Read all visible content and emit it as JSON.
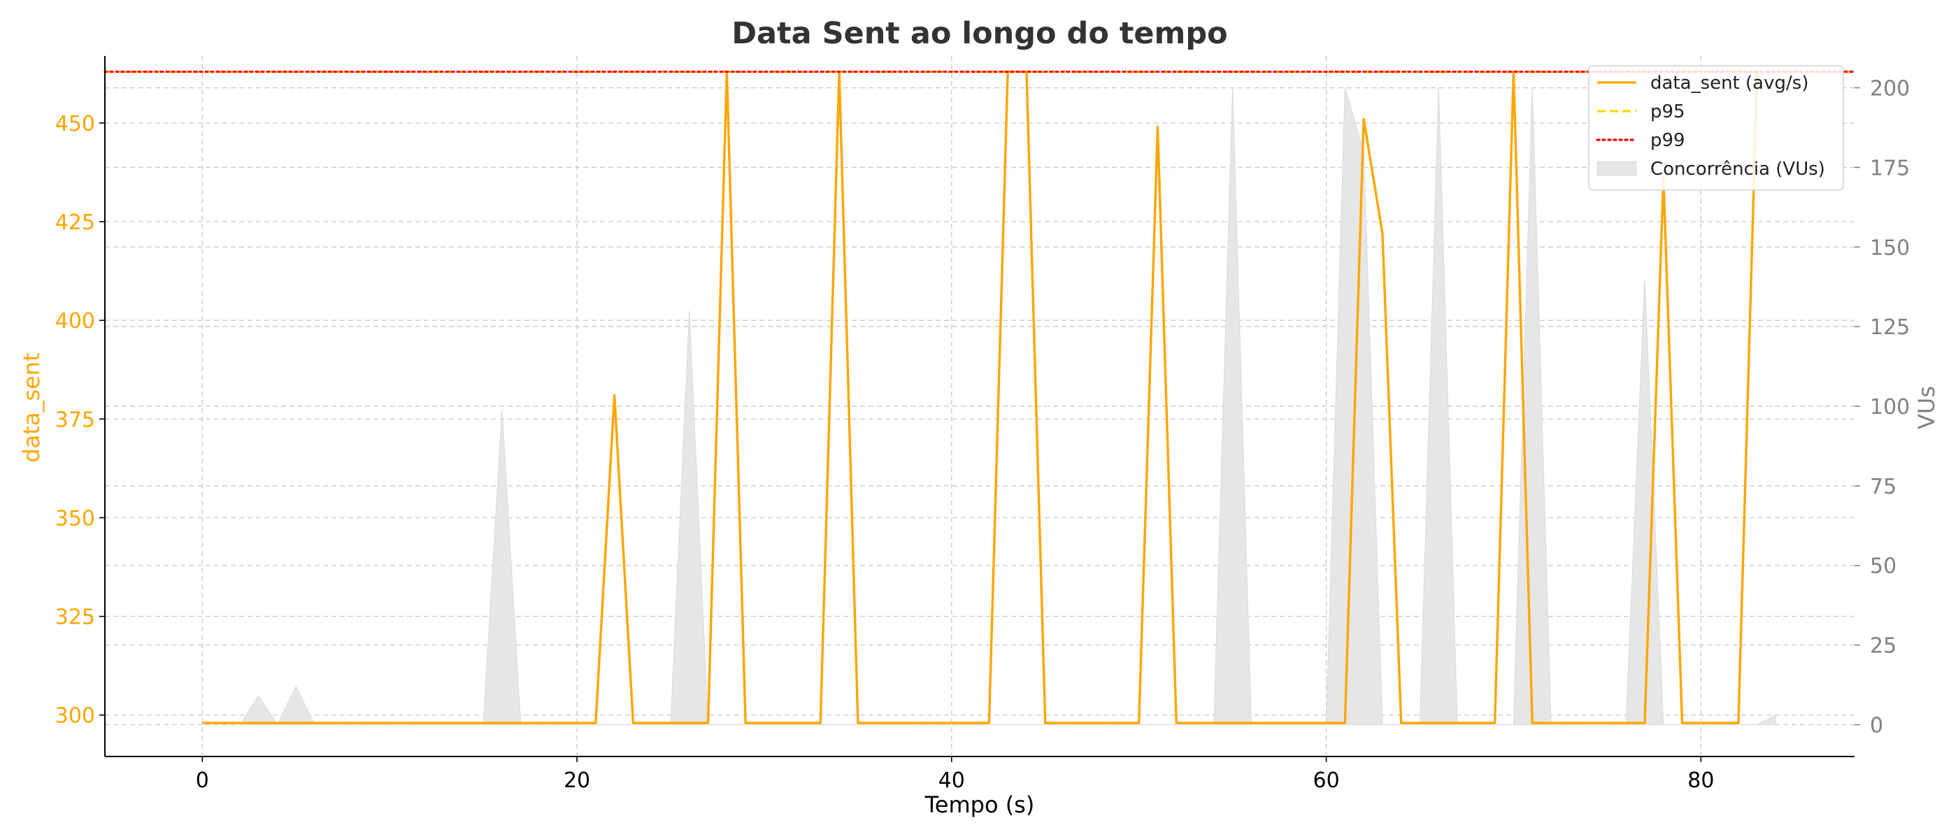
{
  "colors": {
    "data_sent": "#FFA500",
    "p95": "#FFD700",
    "p99": "#FF0000",
    "vus": "#E6E6E6",
    "right_axis": "#808080",
    "grid": "#CCCCCC"
  },
  "chart_data": {
    "type": "line",
    "title": "Data Sent ao longo do tempo",
    "xlabel": "Tempo (s)",
    "ylabel_left": "data_sent",
    "ylabel_right": "VUs",
    "xlim": [
      -5.2,
      88.2
    ],
    "ylim_left": [
      289.5,
      467
    ],
    "ylim_right": [
      -10,
      210
    ],
    "xticks": [
      0,
      20,
      40,
      60,
      80
    ],
    "yticks_left": [
      300,
      325,
      350,
      375,
      400,
      425,
      450
    ],
    "yticks_right": [
      0,
      25,
      50,
      75,
      100,
      125,
      150,
      175,
      200
    ],
    "grid": true,
    "legend_position": "upper right",
    "series": [
      {
        "name": "data_sent (avg/s)",
        "style": "solid",
        "axis": "left",
        "x": [
          0,
          21,
          22,
          23,
          27,
          28,
          29,
          33,
          34,
          35,
          42,
          43,
          44,
          45,
          50,
          51,
          52,
          61,
          62,
          63,
          64,
          69,
          70,
          71,
          77,
          78,
          79,
          82,
          83
        ],
        "y": [
          298,
          298,
          381,
          298,
          298,
          463,
          298,
          298,
          463,
          298,
          298,
          463,
          463,
          298,
          298,
          449,
          298,
          298,
          451,
          422,
          298,
          298,
          463,
          298,
          298,
          436,
          298,
          298,
          463
        ]
      },
      {
        "name": "p95",
        "style": "dashed",
        "axis": "left",
        "value": 463
      },
      {
        "name": "p99",
        "style": "dotted",
        "axis": "left",
        "value": 463
      },
      {
        "name": "Concorrência (VUs)",
        "style": "area",
        "axis": "right",
        "x": [
          2,
          3,
          4,
          4,
          5,
          6,
          15,
          16,
          17,
          25,
          26,
          27,
          54,
          55,
          56,
          60,
          61,
          62,
          63,
          65,
          66,
          67,
          70,
          71,
          72,
          76,
          77,
          78,
          83,
          84
        ],
        "y": [
          0,
          9,
          0,
          0,
          12,
          0,
          0,
          99,
          0,
          0,
          130,
          0,
          0,
          200,
          0,
          0,
          200,
          180,
          0,
          0,
          200,
          0,
          0,
          200,
          0,
          0,
          140,
          0,
          0,
          3
        ]
      }
    ]
  }
}
